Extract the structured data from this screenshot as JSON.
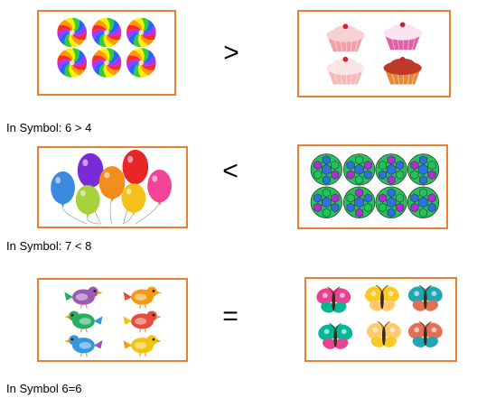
{
  "rows": [
    {
      "symbol": ">",
      "caption": "In Symbol: 6 > 4",
      "left": {
        "item": "swirl-candy",
        "count": 6
      },
      "right": {
        "item": "cupcake",
        "count": 4
      }
    },
    {
      "symbol": "<",
      "caption": "In Symbol: 7 < 8",
      "left": {
        "item": "balloon",
        "count": 7
      },
      "right": {
        "item": "soccer-ball",
        "count": 8
      }
    },
    {
      "symbol": "=",
      "caption": "In Symbol 6=6",
      "left": {
        "item": "bird",
        "count": 6
      },
      "right": {
        "item": "butterfly",
        "count": 6
      }
    }
  ],
  "colors": {
    "frame": "#ED7D31",
    "candy": [
      "#ff2a2a",
      "#ff9900",
      "#ffee00",
      "#33cc33",
      "#2266ff",
      "#aa33ff"
    ],
    "balloons": [
      "#3a8be0",
      "#7a2bd6",
      "#f28c1a",
      "#e8262a",
      "#f2c21a",
      "#f2459a",
      "#a6d13a"
    ],
    "ball": [
      "#2f6fe0",
      "#23c35a",
      "#b32cd6"
    ],
    "birds": [
      "#9b59b6",
      "#f39c12",
      "#27ae60",
      "#e74c3c",
      "#3498db",
      "#f1c40f"
    ],
    "butterflies": [
      "#e84393",
      "#f9ca24",
      "#22a6b3",
      "#00b894",
      "#fdcb6e",
      "#e17055"
    ]
  }
}
